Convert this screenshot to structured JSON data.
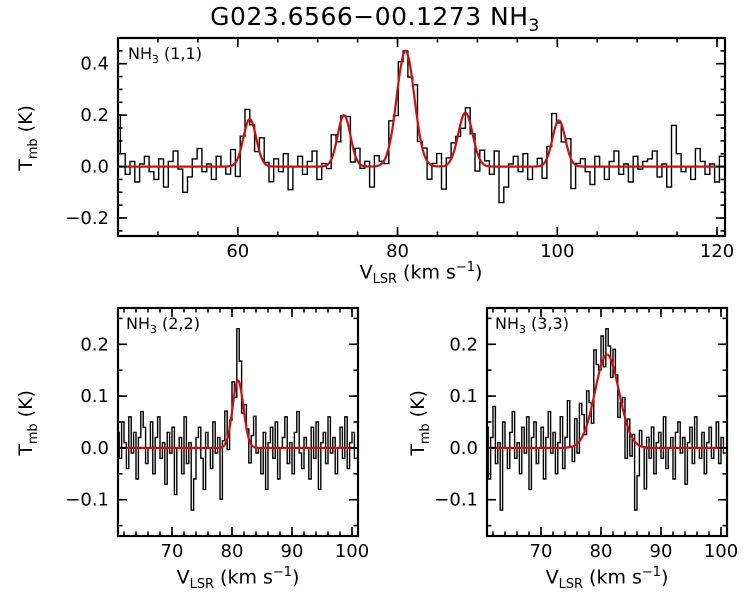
{
  "title": {
    "main": "G023.6566−00.1273 NH",
    "sub": "3"
  },
  "axis": {
    "y_main": "T",
    "y_sub": "mb",
    "y_rest": " (K)",
    "x_main": "V",
    "x_sub": "LSR",
    "x_rest": " (km s",
    "x_sup": "−1",
    "x_end": ")"
  },
  "colors": {
    "data_line": "#000000",
    "fit_line": "#cc1010"
  },
  "chart_data": [
    {
      "type": "line",
      "label_pre": "NH",
      "label_sub": "3",
      "label_rest": " (1,1)",
      "xlim": [
        45,
        121
      ],
      "ylim": [
        -0.27,
        0.5
      ],
      "xticks": [
        60,
        80,
        100,
        120
      ],
      "yticks": [
        -0.2,
        0.0,
        0.2,
        0.4
      ],
      "xminor": 5,
      "yminor": 0.05,
      "x0": 45,
      "dx": 0.6,
      "fit_components": [
        {
          "center": 61.5,
          "amp": 0.185,
          "sigma": 0.8
        },
        {
          "center": 73.3,
          "amp": 0.2,
          "sigma": 0.8
        },
        {
          "center": 81.0,
          "amp": 0.45,
          "sigma": 1.1
        },
        {
          "center": 88.5,
          "amp": 0.21,
          "sigma": 0.9
        },
        {
          "center": 100.2,
          "amp": 0.18,
          "sigma": 0.8
        }
      ],
      "noise": [
        0.2,
        0.05,
        -0.03,
        0.02,
        -0.06,
        0.01,
        0.04,
        -0.02,
        -0.05,
        0.03,
        -0.08,
        0.02,
        0.06,
        -0.01,
        -0.1,
        -0.04,
        0.03,
        0.07,
        -0.02,
        0.01,
        -0.05,
        0.04,
        0.0,
        -0.03,
        0.06,
        -0.07,
        0.02,
        0.05,
        -0.01,
        -0.04,
        0.08,
        0.01,
        -0.06,
        0.03,
        -0.02,
        0.05,
        -0.09,
        0.0,
        0.04,
        -0.03,
        0.02,
        0.06,
        -0.05,
        0.01,
        -0.02,
        0.07,
        -0.04,
        0.0,
        0.03,
        -0.06,
        0.05,
        -0.01,
        0.02,
        -0.08,
        0.04,
        0.01,
        -0.03,
        0.06,
        -0.05,
        0.02,
        0.0,
        -0.04,
        0.07,
        -0.02,
        0.03,
        -0.06,
        0.01,
        0.05,
        -0.09,
        0.02,
        0.04,
        -0.01,
        -0.05,
        0.03,
        0.0,
        -0.07,
        0.05,
        0.02,
        -0.03,
        0.06,
        -0.14,
        -0.08,
        0.01,
        0.04,
        -0.02,
        0.05,
        -0.05,
        0.0,
        0.03,
        -0.06,
        0.02,
        0.07,
        -0.01,
        -0.04,
        0.05,
        -0.1,
        0.01,
        0.03,
        -0.02,
        -0.07,
        0.04,
        0.0,
        -0.05,
        0.02,
        0.06,
        -0.03,
        0.01,
        -0.06,
        0.04,
        -0.01,
        0.02,
        0.03,
        0.06,
        -0.04,
        0.01,
        -0.08,
        0.16,
        0.05,
        -0.02,
        0.0,
        -0.05,
        0.07,
        0.02,
        -0.03,
        0.01,
        -0.06,
        0.04
      ]
    },
    {
      "type": "line",
      "label_pre": "NH",
      "label_sub": "3",
      "label_rest": " (2,2)",
      "xlim": [
        61,
        101
      ],
      "ylim": [
        -0.17,
        0.27
      ],
      "xticks": [
        70,
        80,
        90,
        100
      ],
      "yticks": [
        -0.1,
        0.0,
        0.1,
        0.2
      ],
      "xminor": 2,
      "yminor": 0.05,
      "x0": 61,
      "dx": 0.4,
      "fit_components": [
        {
          "center": 81.0,
          "amp": 0.13,
          "sigma": 0.9
        }
      ],
      "noise": [
        0.03,
        -0.02,
        0.05,
        0.01,
        -0.04,
        0.06,
        -0.01,
        0.03,
        -0.06,
        0.02,
        0.07,
        0.04,
        -0.03,
        0.0,
        0.05,
        -0.05,
        0.02,
        0.06,
        -0.02,
        0.01,
        -0.07,
        0.03,
        -0.01,
        0.04,
        -0.09,
        0.0,
        0.02,
        -0.05,
        0.06,
        -0.03,
        0.01,
        -0.12,
        -0.06,
        0.02,
        0.04,
        -0.02,
        -0.08,
        0.03,
        0.0,
        -0.04,
        0.05,
        -0.01,
        0.02,
        -0.1,
        0.01,
        0.06,
        -0.03,
        0.0,
        0.04,
        -0.02,
        0.1,
        0.05,
        -0.02,
        0.03,
        0.01,
        -0.04,
        0.02,
        0.06,
        -0.01,
        0.0,
        -0.05,
        0.03,
        -0.08,
        0.01,
        0.04,
        -0.02,
        0.05,
        -0.06,
        0.0,
        0.02,
        0.06,
        -0.03,
        0.01,
        -0.05,
        0.03,
        0.07,
        -0.01,
        -0.04,
        0.02,
        0.0,
        -0.06,
        0.04,
        -0.02,
        0.05,
        -0.08,
        0.01,
        0.03,
        -0.03,
        0.06,
        -0.01,
        0.02,
        -0.05,
        0.0,
        0.04,
        -0.02,
        0.06,
        -0.04,
        0.01,
        0.03,
        -0.02
      ]
    },
    {
      "type": "line",
      "label_pre": "NH",
      "label_sub": "3",
      "label_rest": " (3,3)",
      "xlim": [
        61,
        101
      ],
      "ylim": [
        -0.17,
        0.27
      ],
      "xticks": [
        70,
        80,
        90,
        100
      ],
      "yticks": [
        -0.1,
        0.0,
        0.1,
        0.2
      ],
      "xminor": 2,
      "yminor": 0.05,
      "x0": 61,
      "dx": 0.4,
      "fit_components": [
        {
          "center": 81.0,
          "amp": 0.18,
          "sigma": 2.0
        }
      ],
      "noise": [
        0.04,
        -0.06,
        0.02,
        0.08,
        -0.03,
        0.01,
        -0.12,
        0.05,
        0.0,
        -0.04,
        0.03,
        0.07,
        -0.02,
        0.01,
        -0.05,
        0.04,
        -0.01,
        0.06,
        -0.08,
        0.02,
        0.05,
        -0.03,
        0.0,
        0.04,
        -0.06,
        0.02,
        0.07,
        -0.01,
        0.03,
        -0.05,
        0.01,
        0.06,
        -0.04,
        0.02,
        0.09,
        0.0,
        -0.03,
        0.05,
        -0.02,
        0.07,
        0.04,
        -0.01,
        0.06,
        0.02,
        -0.04,
        0.08,
        0.03,
        0.0,
        0.05,
        -0.02,
        0.05,
        0.02,
        -0.03,
        0.04,
        0.01,
        -0.05,
        0.0,
        0.03,
        -0.07,
        0.02,
        -0.04,
        0.01,
        -0.13,
        -0.06,
        0.03,
        0.0,
        -0.08,
        0.02,
        -0.02,
        0.04,
        -0.05,
        0.01,
        0.03,
        -0.02,
        0.06,
        -0.04,
        0.0,
        0.02,
        -0.06,
        0.03,
        0.05,
        -0.01,
        0.02,
        -0.07,
        0.01,
        0.04,
        -0.03,
        0.06,
        0.0,
        -0.02,
        0.03,
        -0.05,
        0.01,
        0.04,
        -0.02,
        0.0,
        0.05,
        -0.03,
        0.02,
        -0.01
      ]
    }
  ]
}
